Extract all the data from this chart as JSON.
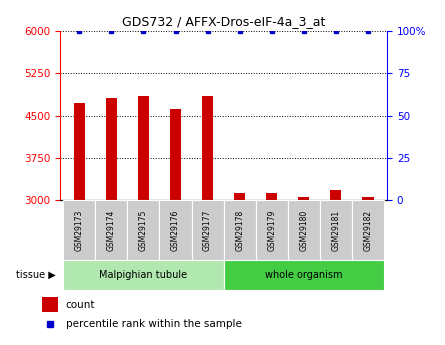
{
  "title": "GDS732 / AFFX-Dros-eIF-4a_3_at",
  "samples": [
    "GSM29173",
    "GSM29174",
    "GSM29175",
    "GSM29176",
    "GSM29177",
    "GSM29178",
    "GSM29179",
    "GSM29180",
    "GSM29181",
    "GSM29182"
  ],
  "counts": [
    4720,
    4810,
    4840,
    4620,
    4850,
    3130,
    3130,
    3060,
    3180,
    3060
  ],
  "percentiles": [
    100,
    100,
    100,
    100,
    100,
    100,
    100,
    100,
    100,
    100
  ],
  "ylim_left": [
    3000,
    6000
  ],
  "yticks_left": [
    3000,
    3750,
    4500,
    5250,
    6000
  ],
  "ylim_right": [
    0,
    100
  ],
  "yticks_right": [
    0,
    25,
    50,
    75,
    100
  ],
  "bar_color": "#cc0000",
  "percentile_color": "#0000cc",
  "bar_width": 0.35,
  "group1_label": "Malpighian tubule",
  "group2_label": "whole organism",
  "group1_color": "#b0e8b0",
  "group2_color": "#44cc44",
  "tissue_label": "tissue",
  "legend_count_label": "count",
  "legend_percentile_label": "percentile rank within the sample",
  "sample_box_color": "#cccccc",
  "right_axis_top_label": "100%"
}
